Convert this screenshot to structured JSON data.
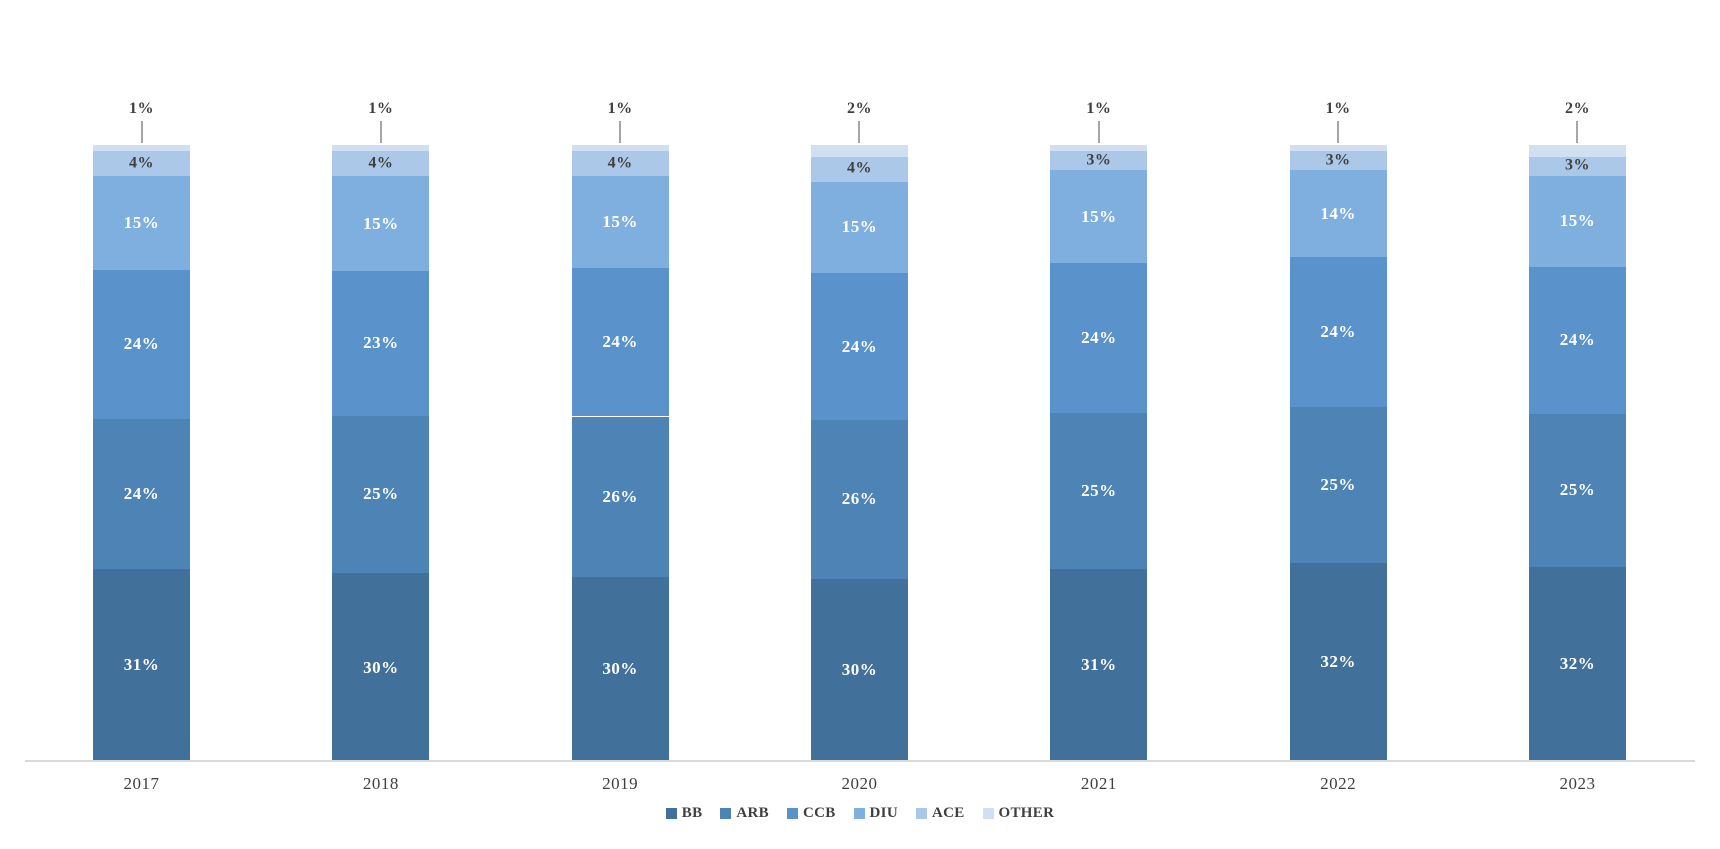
{
  "chart_data": {
    "type": "bar",
    "variant": "100-percent-stacked-column",
    "title": "",
    "xlabel": "",
    "ylabel": "",
    "grid": false,
    "y_axis_visible": false,
    "legend_position": "bottom",
    "background": "#ffffff",
    "axis_line_color": "#d9d9d9",
    "leader_line_color": "#a6a6a6",
    "text_color": "#3f3f3f",
    "value_suffix": "%",
    "categories": [
      "2017",
      "2018",
      "2019",
      "2020",
      "2021",
      "2022",
      "2023"
    ],
    "series": [
      {
        "name": "BB",
        "color": "#41709b",
        "label_color": "#ffffff",
        "label_position": "inside",
        "values": [
          31,
          30,
          30,
          30,
          31,
          32,
          32
        ]
      },
      {
        "name": "ARB",
        "color": "#4d83b5",
        "label_color": "#ffffff",
        "label_position": "inside",
        "values": [
          24,
          25,
          26,
          26,
          25,
          25,
          25
        ]
      },
      {
        "name": "CCB",
        "color": "#5a93cb",
        "label_color": "#ffffff",
        "label_position": "inside",
        "values": [
          24,
          23,
          24,
          24,
          24,
          24,
          24
        ]
      },
      {
        "name": "DIU",
        "color": "#7fafde",
        "label_color": "#ffffff",
        "label_position": "inside",
        "values": [
          15,
          15,
          15,
          15,
          15,
          14,
          15
        ]
      },
      {
        "name": "ACE",
        "color": "#abc8e9",
        "label_color": "#3f3f3f",
        "label_position": "inside",
        "values": [
          4,
          4,
          4,
          4,
          3,
          3,
          3
        ]
      },
      {
        "name": "OTHER",
        "color": "#d0dff1",
        "label_color": "#3f3f3f",
        "label_position": "outside",
        "values": [
          1,
          1,
          1,
          2,
          1,
          1,
          2
        ]
      }
    ],
    "data_labels": {
      "2017": [
        "31%",
        "24%",
        "24%",
        "15%",
        "4%",
        "1%"
      ],
      "2018": [
        "30%",
        "25%",
        "23%",
        "15%",
        "4%",
        "1%"
      ],
      "2019": [
        "30%",
        "26%",
        "24%",
        "15%",
        "4%",
        "1%"
      ],
      "2020": [
        "30%",
        "26%",
        "24%",
        "15%",
        "4%",
        "2%"
      ],
      "2021": [
        "31%",
        "25%",
        "24%",
        "15%",
        "3%",
        "1%"
      ],
      "2022": [
        "32%",
        "25%",
        "24%",
        "14%",
        "3%",
        "1%"
      ],
      "2023": [
        "32%",
        "25%",
        "24%",
        "15%",
        "3%",
        "2%"
      ]
    },
    "legend": [
      "BB",
      "ARB",
      "CCB",
      "DIU",
      "ACE",
      "OTHER"
    ]
  }
}
